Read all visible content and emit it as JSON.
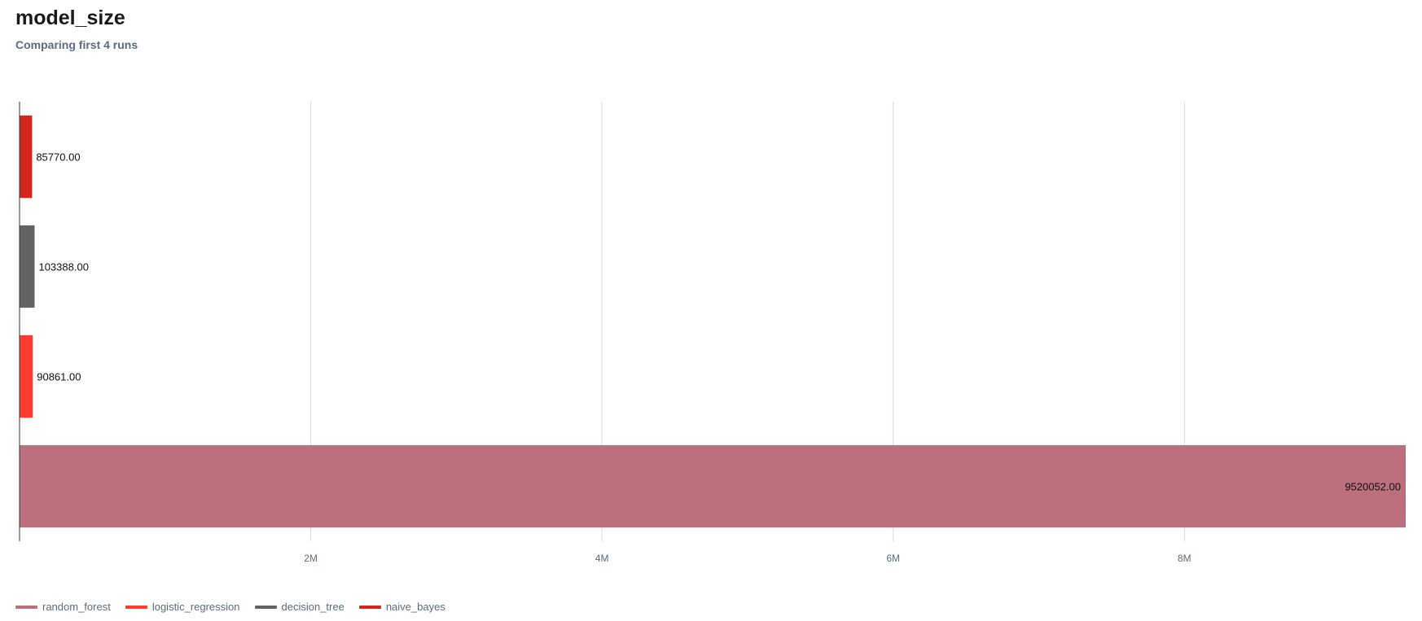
{
  "header": {
    "title": "model_size",
    "subtitle": "Comparing first 4 runs"
  },
  "chart_data": {
    "type": "bar",
    "orientation": "horizontal",
    "title": "model_size",
    "subtitle": "Comparing first 4 runs",
    "xlim": [
      0,
      9520052
    ],
    "x_ticks": [
      2000000,
      4000000,
      6000000,
      8000000
    ],
    "x_tick_labels": [
      "2M",
      "4M",
      "6M",
      "8M"
    ],
    "grid": true,
    "legend_position": "bottom-left",
    "series": [
      {
        "name": "naive_bayes",
        "value": 85770,
        "label": "85770.00",
        "color": "#d3261c"
      },
      {
        "name": "decision_tree",
        "value": 103388,
        "label": "103388.00",
        "color": "#636363"
      },
      {
        "name": "logistic_regression",
        "value": 90861,
        "label": "90861.00",
        "color": "#ff3b2f"
      },
      {
        "name": "random_forest",
        "value": 9520052,
        "label": "9520052.00",
        "color": "#bd6f7e"
      }
    ],
    "legend": [
      {
        "name": "random_forest",
        "color": "#bd6f7e"
      },
      {
        "name": "logistic_regression",
        "color": "#ff3b2f"
      },
      {
        "name": "decision_tree",
        "color": "#636363"
      },
      {
        "name": "naive_bayes",
        "color": "#d3261c"
      }
    ]
  }
}
